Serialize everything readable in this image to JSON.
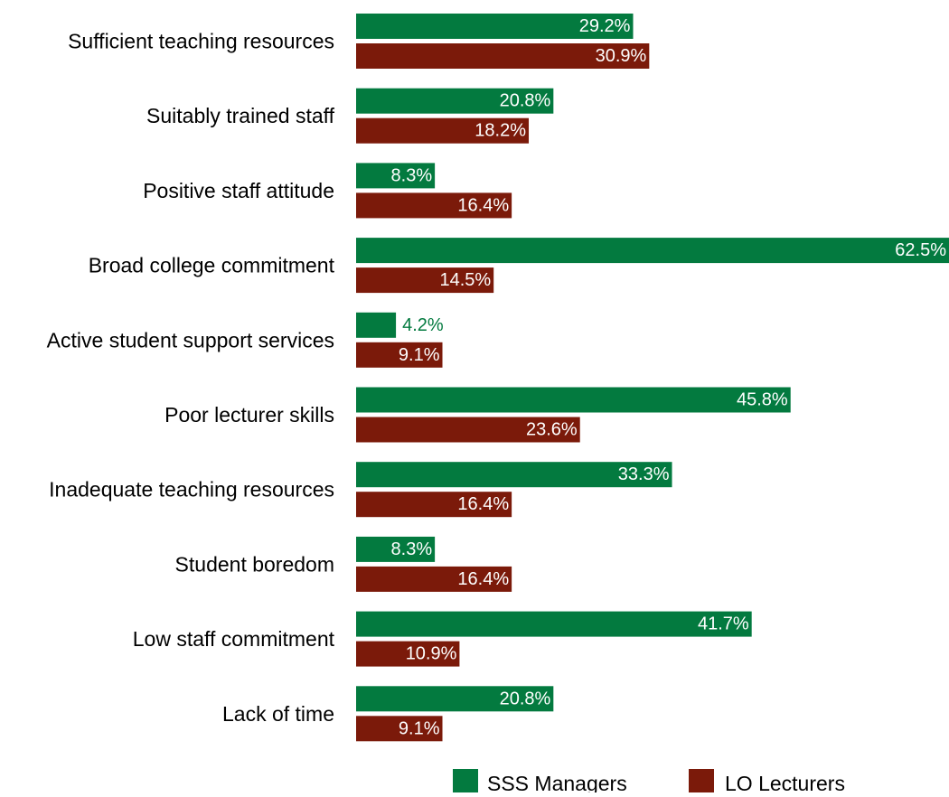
{
  "chart_data": {
    "type": "bar",
    "orientation": "horizontal",
    "categories": [
      "Sufficient teaching resources",
      "Suitably trained staff",
      "Positive staff attitude",
      "Broad college commitment",
      "Active student support services",
      "Poor lecturer skills",
      "Inadequate teaching resources",
      "Student boredom",
      "Low staff commitment",
      "Lack of time"
    ],
    "series": [
      {
        "name": "SSS Managers",
        "color": "#037a3f",
        "values": [
          29.2,
          20.8,
          8.3,
          62.5,
          4.2,
          45.8,
          33.3,
          8.3,
          41.7,
          20.8
        ],
        "labels": [
          "29.2%",
          "20.8%",
          "8.3%",
          "62.5%",
          "4.2%",
          "45.8%",
          "33.3%",
          "8.3%",
          "41.7%",
          "20.8%"
        ]
      },
      {
        "name": "LO Lecturers",
        "color": "#7b1a0a",
        "values": [
          30.9,
          18.2,
          16.4,
          14.5,
          9.1,
          23.6,
          16.4,
          16.4,
          10.9,
          9.1
        ],
        "labels": [
          "30.9%",
          "18.2%",
          "16.4%",
          "14.5%",
          "9.1%",
          "23.6%",
          "16.4%",
          "16.4%",
          "10.9%",
          "9.1%"
        ]
      }
    ],
    "xlim": [
      0,
      62.5
    ],
    "grid": false,
    "legend_position": "bottom"
  }
}
